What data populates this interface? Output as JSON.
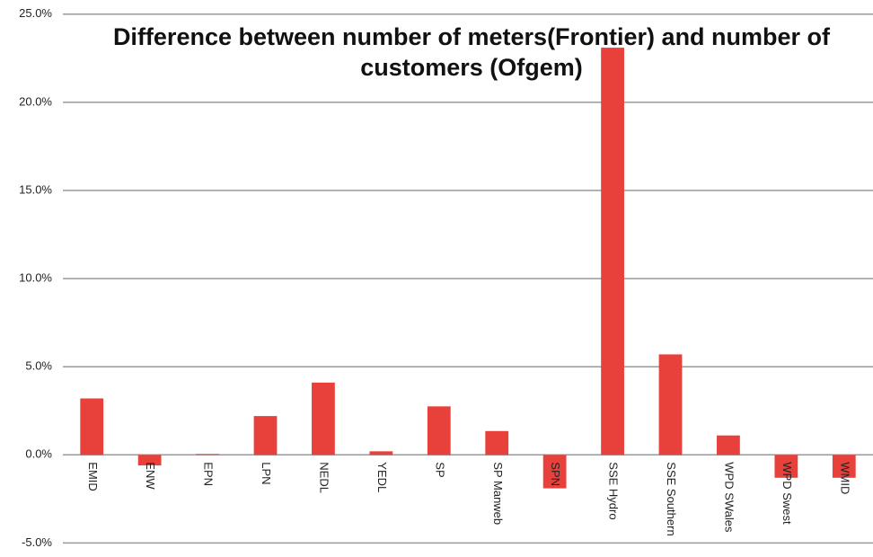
{
  "chart_data": {
    "type": "bar",
    "title": "Difference between number of meters(Frontier) and number of customers (Ofgem)",
    "categories": [
      "EMID",
      "ENW",
      "EPN",
      "LPN",
      "NEDL",
      "YEDL",
      "SP",
      "SP Manweb",
      "SPN",
      "SSE Hydro",
      "SSE Southern",
      "WPD SWales",
      "WPD Swest",
      "WMID"
    ],
    "values": [
      3.2,
      -0.6,
      0.05,
      2.2,
      4.1,
      0.2,
      2.75,
      1.35,
      -1.9,
      23.1,
      5.7,
      1.1,
      -1.3,
      -1.3
    ],
    "color": "#e8403a",
    "ylim": [
      -6,
      25.5
    ],
    "yticks": [
      {
        "value": -5,
        "label": "-5.0%"
      },
      {
        "value": 0,
        "label": "0.0%"
      },
      {
        "value": 5,
        "label": "5.0%"
      },
      {
        "value": 10,
        "label": "10.0%"
      },
      {
        "value": 15,
        "label": "15.0%"
      },
      {
        "value": 20,
        "label": "20.0%"
      },
      {
        "value": 25,
        "label": "25.0%"
      }
    ],
    "grid": true
  }
}
